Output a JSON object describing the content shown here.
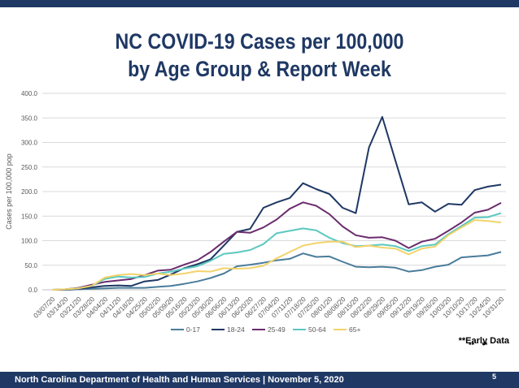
{
  "title_line1": "NC COVID-19 Cases per 100,000",
  "title_line2": "by Age Group & Report Week",
  "early_data_note": "**Early Data",
  "early_markers": [
    "**",
    "**"
  ],
  "footer": {
    "org_text": "North Carolina Department of Health and Human Services | November 5, 2020",
    "page_number": "5"
  },
  "colors": {
    "brand": "#1f3864",
    "grid": "#d9d9d9",
    "axis_text": "#595959"
  },
  "chart_data": {
    "type": "line",
    "title": "NC COVID-19 Cases per 100,000 by Age Group & Report Week",
    "xlabel": "",
    "ylabel": "Cases per 100,000 pop",
    "ylim": [
      0,
      400
    ],
    "yticks": [
      "0.0",
      "50.0",
      "100.0",
      "150.0",
      "200.0",
      "250.0",
      "300.0",
      "350.0",
      "400.0"
    ],
    "grid": true,
    "legend_position": "bottom",
    "categories": [
      "03/07/20",
      "03/14/20",
      "03/21/20",
      "03/28/20",
      "04/04/20",
      "04/11/20",
      "04/18/20",
      "04/25/20",
      "05/02/20",
      "05/09/20",
      "05/16/20",
      "05/23/20",
      "05/30/20",
      "06/06/20",
      "06/13/20",
      "06/20/20",
      "06/27/20",
      "07/04/20",
      "07/11/20",
      "07/18/20",
      "07/25/20",
      "08/01/20",
      "08/08/20",
      "08/15/20",
      "08/22/20",
      "08/29/20",
      "09/05/20",
      "09/12/20",
      "09/19/20",
      "09/26/20",
      "10/03/20",
      "10/10/20",
      "10/17/20",
      "10/24/20",
      "10/31/20"
    ],
    "series": [
      {
        "name": "0-17",
        "color": "#4a7c9b",
        "values": [
          0,
          0,
          1,
          2,
          3,
          4,
          4,
          4,
          6,
          8,
          12,
          17,
          24,
          33,
          48,
          51,
          55,
          60,
          63,
          74,
          67,
          68,
          57,
          47,
          46,
          47,
          45,
          37,
          40,
          47,
          51,
          66,
          68,
          70,
          77
        ]
      },
      {
        "name": "18-24",
        "color": "#1f3864",
        "values": [
          0,
          0,
          2,
          5,
          8,
          9,
          8,
          17,
          20,
          31,
          44,
          52,
          62,
          90,
          118,
          124,
          167,
          178,
          187,
          217,
          205,
          195,
          167,
          156,
          290,
          352,
          263,
          174,
          178,
          159,
          175,
          173,
          203,
          210,
          214
        ]
      },
      {
        "name": "25-49",
        "color": "#6b2c6e",
        "values": [
          0,
          1,
          4,
          10,
          16,
          19,
          22,
          30,
          39,
          41,
          51,
          60,
          77,
          98,
          118,
          116,
          127,
          143,
          165,
          178,
          171,
          154,
          129,
          111,
          106,
          107,
          100,
          85,
          98,
          104,
          120,
          137,
          157,
          163,
          177
        ]
      },
      {
        "name": "50-64",
        "color": "#5bc8c0",
        "values": [
          0,
          1,
          3,
          8,
          22,
          27,
          25,
          26,
          33,
          37,
          43,
          48,
          59,
          73,
          76,
          81,
          93,
          115,
          120,
          125,
          121,
          106,
          95,
          89,
          90,
          92,
          89,
          79,
          89,
          92,
          113,
          130,
          147,
          148,
          156
        ]
      },
      {
        "name": "65+",
        "color": "#f2d36b",
        "values": [
          0,
          1,
          3,
          8,
          25,
          30,
          32,
          30,
          33,
          30,
          33,
          38,
          37,
          44,
          43,
          44,
          49,
          64,
          77,
          90,
          95,
          98,
          98,
          87,
          90,
          86,
          84,
          72,
          84,
          88,
          111,
          127,
          142,
          140,
          137
        ]
      }
    ]
  }
}
